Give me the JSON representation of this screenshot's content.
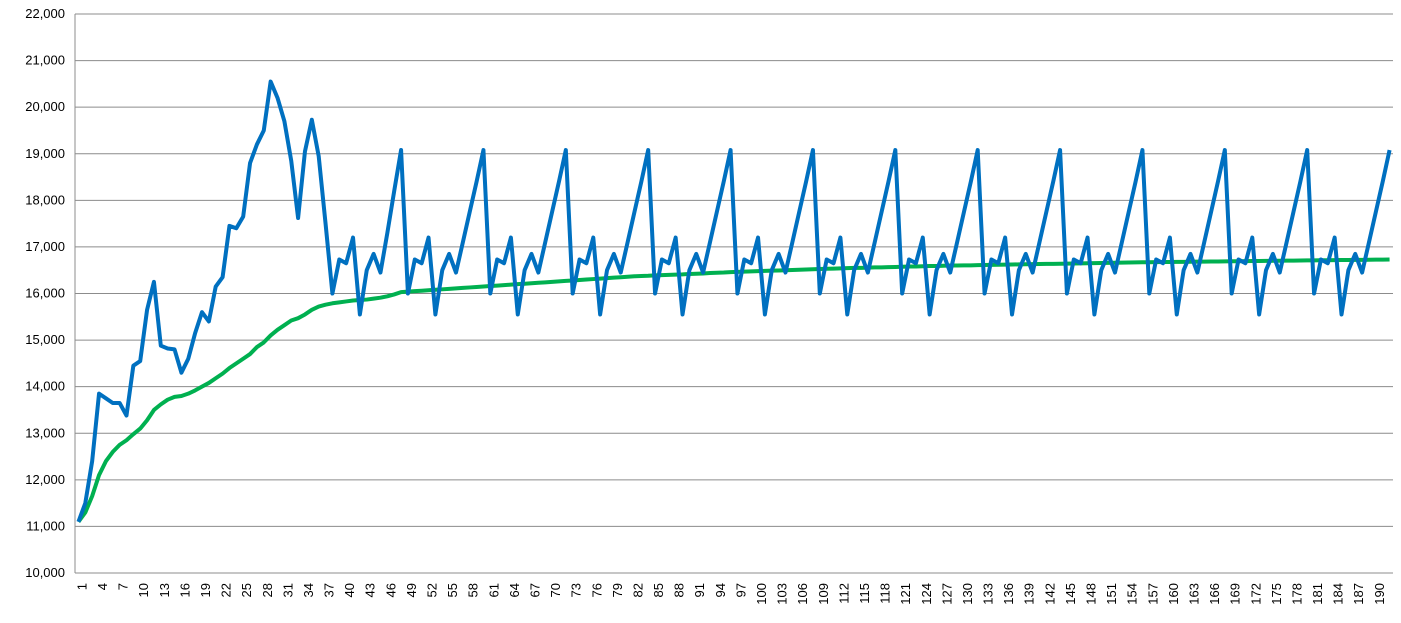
{
  "chart_data": {
    "type": "line",
    "categories": [
      1,
      null,
      null,
      4,
      null,
      null,
      7,
      null,
      null,
      10,
      null,
      null,
      13,
      null,
      null,
      16,
      null,
      null,
      19,
      null,
      null,
      22,
      null,
      null,
      25,
      null,
      null,
      28,
      null,
      null,
      31,
      null,
      null,
      34,
      null,
      null,
      37,
      null,
      null,
      40,
      null,
      null,
      43,
      null,
      null,
      46,
      null,
      null,
      49,
      null,
      null,
      52,
      null,
      null,
      55,
      null,
      null,
      58,
      null,
      null,
      61,
      null,
      null,
      64,
      null,
      null,
      67,
      null,
      null,
      70,
      null,
      null,
      73,
      null,
      null,
      76,
      null,
      null,
      79,
      null,
      null,
      82,
      null,
      null,
      85,
      null,
      null,
      88,
      null,
      null,
      91,
      null,
      null,
      94,
      null,
      null,
      97,
      null,
      null,
      100,
      null,
      null,
      103,
      null,
      null,
      106,
      null,
      null,
      109,
      null,
      null,
      112,
      null,
      null,
      115,
      null,
      null,
      118,
      null,
      null,
      121,
      null,
      null,
      124,
      null,
      null,
      127,
      null,
      null,
      130,
      null,
      null,
      133,
      null,
      null,
      136,
      null,
      null,
      139,
      null,
      null,
      142,
      null,
      null,
      145,
      null,
      null,
      148,
      null,
      null,
      151,
      null,
      null,
      154,
      null,
      null,
      157,
      null,
      null,
      160,
      null,
      null,
      163,
      null,
      null,
      166,
      null,
      null,
      169,
      null,
      null,
      172,
      null,
      null,
      175,
      null,
      null,
      178,
      null,
      null,
      181,
      null,
      null,
      184,
      null,
      null,
      187,
      null,
      null,
      190,
      null,
      null
    ],
    "series": [
      {
        "color": "#0070c0",
        "values": [
          11100,
          11500,
          12400,
          13850,
          13750,
          13650,
          13650,
          13380,
          14450,
          14550,
          15650,
          16250,
          14880,
          14820,
          14800,
          14300,
          14600,
          15150,
          15600,
          15400,
          16150,
          16350,
          17450,
          17400,
          17650,
          18800,
          19200,
          19500,
          20550,
          20200,
          19700,
          18850,
          17620,
          19050,
          19730,
          18950,
          17500,
          16000,
          16730,
          16650,
          17200,
          15550,
          16500,
          16850,
          16450,
          17300,
          18200,
          19080,
          16000,
          16730,
          16650,
          17200,
          15550,
          16500,
          16850,
          16450,
          17100,
          17750,
          18400,
          19080,
          16000,
          16730,
          16650,
          17200,
          15550,
          16500,
          16850,
          16450,
          17100,
          17750,
          18400,
          19080,
          16000,
          16730,
          16650,
          17200,
          15550,
          16500,
          16850,
          16450,
          17100,
          17750,
          18400,
          19080,
          16000,
          16730,
          16650,
          17200,
          15550,
          16500,
          16850,
          16450,
          17100,
          17750,
          18400,
          19080,
          16000,
          16730,
          16650,
          17200,
          15550,
          16500,
          16850,
          16450,
          17100,
          17750,
          18400,
          19080,
          16000,
          16730,
          16650,
          17200,
          15550,
          16500,
          16850,
          16450,
          17100,
          17750,
          18400,
          19080,
          16000,
          16730,
          16650,
          17200,
          15550,
          16500,
          16850,
          16450,
          17100,
          17750,
          18400,
          19080,
          16000,
          16730,
          16650,
          17200,
          15550,
          16500,
          16850,
          16450,
          17100,
          17750,
          18400,
          19080,
          16000,
          16730,
          16650,
          17200,
          15550,
          16500,
          16850,
          16450,
          17100,
          17750,
          18400,
          19080,
          16000,
          16730,
          16650,
          17200,
          15550,
          16500,
          16850,
          16450,
          17100,
          17750,
          18400,
          19080,
          16000,
          16730,
          16650,
          17200,
          15550,
          16500,
          16850,
          16450,
          17100,
          17750,
          18400,
          19080,
          16000,
          16730,
          16650,
          17200,
          15550,
          16500,
          16850,
          16450,
          17100,
          17750,
          18400,
          19080
        ]
      },
      {
        "color": "#00b050",
        "values": [
          11100,
          11300,
          11650,
          12100,
          12400,
          12600,
          12750,
          12850,
          12980,
          13100,
          13280,
          13500,
          13620,
          13720,
          13780,
          13800,
          13850,
          13920,
          14000,
          14080,
          14180,
          14280,
          14400,
          14500,
          14600,
          14700,
          14850,
          14950,
          15100,
          15220,
          15320,
          15420,
          15470,
          15550,
          15650,
          15720,
          15760,
          15790,
          15810,
          15830,
          15850,
          15860,
          15870,
          15890,
          15910,
          15940,
          15980,
          16030,
          16040,
          16050,
          16060,
          16070,
          16080,
          16090,
          16100,
          16110,
          16120,
          16130,
          16140,
          16150,
          16160,
          16170,
          16180,
          16190,
          16200,
          16210,
          16220,
          16230,
          16240,
          16250,
          16260,
          16270,
          16280,
          16290,
          16300,
          16310,
          16320,
          16330,
          16340,
          16350,
          16360,
          16370,
          16375,
          16380,
          16390,
          16395,
          16400,
          16405,
          16410,
          16420,
          16425,
          16430,
          16440,
          16445,
          16450,
          16460,
          16465,
          16470,
          16475,
          16480,
          16485,
          16490,
          16495,
          16500,
          16505,
          16510,
          16515,
          16520,
          16525,
          16530,
          16535,
          16540,
          16545,
          16550,
          16550,
          16555,
          16560,
          16560,
          16565,
          16570,
          16575,
          16580,
          16580,
          16585,
          16590,
          16590,
          16595,
          16600,
          16600,
          16605,
          16605,
          16610,
          16612,
          16615,
          16617,
          16620,
          16622,
          16625,
          16627,
          16630,
          16632,
          16635,
          16637,
          16640,
          16642,
          16645,
          16647,
          16650,
          16652,
          16655,
          16657,
          16660,
          16662,
          16665,
          16667,
          16670,
          16672,
          16673,
          16675,
          16677,
          16678,
          16680,
          16682,
          16683,
          16685,
          16687,
          16688,
          16690,
          16692,
          16693,
          16695,
          16697,
          16698,
          16700,
          16702,
          16703,
          16705,
          16707,
          16708,
          16710,
          16712,
          16713,
          16715,
          16717,
          16718,
          16720,
          16722,
          16723,
          16725,
          16727,
          16728,
          16730
        ]
      }
    ],
    "ylim": [
      10000,
      22000
    ],
    "yticks": [
      {
        "value": 10000,
        "label": "10,000"
      },
      {
        "value": 11000,
        "label": "11,000"
      },
      {
        "value": 12000,
        "label": "12,000"
      },
      {
        "value": 13000,
        "label": "13,000"
      },
      {
        "value": 14000,
        "label": "14,000"
      },
      {
        "value": 15000,
        "label": "15,000"
      },
      {
        "value": 16000,
        "label": "16,000"
      },
      {
        "value": 17000,
        "label": "17,000"
      },
      {
        "value": 18000,
        "label": "18,000"
      },
      {
        "value": 19000,
        "label": "19,000"
      },
      {
        "value": 20000,
        "label": "20,000"
      },
      {
        "value": 21000,
        "label": "21,000"
      },
      {
        "value": 22000,
        "label": "22,000"
      }
    ],
    "grid": true
  }
}
